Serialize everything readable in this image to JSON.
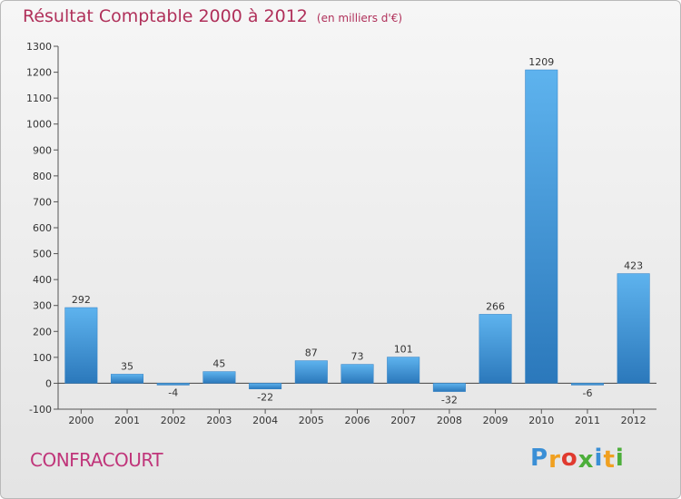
{
  "title": {
    "main": "Résultat Comptable 2000 à 2012",
    "unit": "(en milliers d'€)"
  },
  "commune": "CONFRACOURT",
  "logo": {
    "letters": [
      "P",
      "r",
      "o",
      "x",
      "i",
      "t",
      "i"
    ],
    "colors": [
      "#3a8fd6",
      "#f0a020",
      "#e03a2f",
      "#4cae3a",
      "#3a8fd6",
      "#f0a020",
      "#4cae3a"
    ]
  },
  "chart_data": {
    "type": "bar",
    "categories": [
      "2000",
      "2001",
      "2002",
      "2003",
      "2004",
      "2005",
      "2006",
      "2007",
      "2008",
      "2009",
      "2010",
      "2011",
      "2012"
    ],
    "values": [
      292,
      35,
      -4,
      45,
      -22,
      87,
      73,
      101,
      -32,
      266,
      1209,
      -6,
      423
    ],
    "ylim": [
      -100,
      1300
    ],
    "yticks": [
      -100,
      0,
      100,
      200,
      300,
      400,
      500,
      600,
      700,
      800,
      900,
      1000,
      1100,
      1200,
      1300
    ],
    "grid": false,
    "bar_color": "#3a8fd6"
  }
}
